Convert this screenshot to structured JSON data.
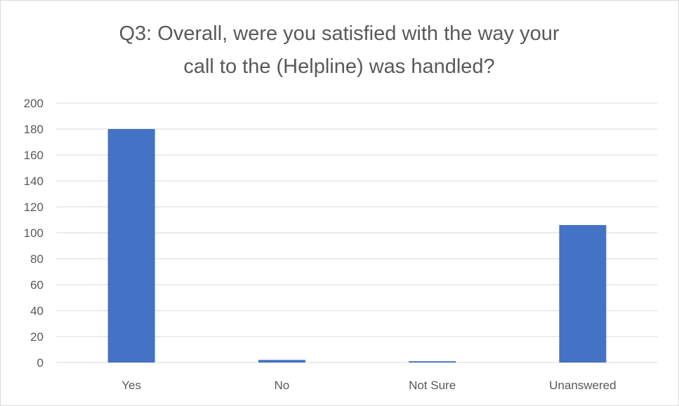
{
  "chart_data": {
    "type": "bar",
    "title_lines": [
      "Q3: Overall, were you satisfied with the way your",
      "call to the (Helpline) was handled?"
    ],
    "categories": [
      "Yes",
      "No",
      "Not Sure",
      "Unanswered"
    ],
    "values": [
      180,
      2,
      1,
      106
    ],
    "ylim": [
      0,
      200
    ],
    "yticks": [
      "0",
      "20",
      "40",
      "60",
      "80",
      "100",
      "120",
      "140",
      "160",
      "180",
      "200"
    ],
    "grid": true,
    "legend": "none",
    "colors": {
      "bar": "#4472c4",
      "grid": "#d9d9d9",
      "text": "#595959"
    }
  }
}
